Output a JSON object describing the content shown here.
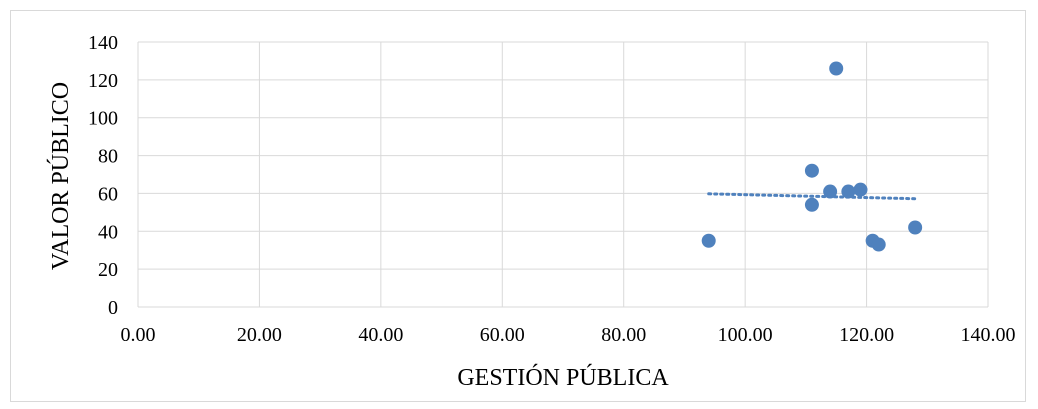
{
  "chart_data": {
    "type": "scatter",
    "xlabel": "GESTIÓN PÚBLICA",
    "ylabel": "VALOR PÚBLICO",
    "xlim": [
      0,
      140
    ],
    "ylim": [
      0,
      140
    ],
    "x_ticks": [
      "0.00",
      "20.00",
      "40.00",
      "60.00",
      "80.00",
      "100.00",
      "120.00",
      "140.00"
    ],
    "y_ticks": [
      "0",
      "20",
      "40",
      "60",
      "80",
      "100",
      "120",
      "140"
    ],
    "grid": true,
    "legend": "none",
    "series": [
      {
        "color": "#4f81bd",
        "points": [
          {
            "x": 94,
            "y": 35
          },
          {
            "x": 111,
            "y": 72
          },
          {
            "x": 111,
            "y": 54
          },
          {
            "x": 114,
            "y": 61
          },
          {
            "x": 115,
            "y": 126
          },
          {
            "x": 117,
            "y": 61
          },
          {
            "x": 119,
            "y": 62
          },
          {
            "x": 121,
            "y": 35
          },
          {
            "x": 122,
            "y": 33
          },
          {
            "x": 128,
            "y": 42
          }
        ]
      }
    ],
    "trendline": {
      "type": "linear",
      "style": "dotted",
      "color": "#4f81bd",
      "x_range": [
        94,
        128
      ],
      "y_start": 59.8,
      "y_end": 57.2
    }
  }
}
